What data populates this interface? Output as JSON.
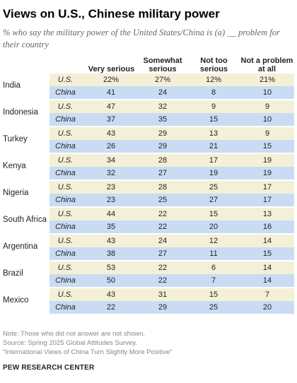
{
  "title": "Views on U.S., Chinese military power",
  "subtitle": "% who say the military power of the United States/China is (a) __ problem for their country",
  "columns": [
    "Very serious",
    "Somewhat serious",
    "Not too serious",
    "Not a problem at all"
  ],
  "notes": [
    "Note: Those who did not answer are not shown.",
    "Source: Spring 2025 Global Attitudes Survey.",
    "“International Views of China Turn Slightly More Positive”"
  ],
  "org": "PEW RESEARCH CENTER",
  "colors": {
    "us_row": "#f4f0d7",
    "china_row": "#c9dcf3"
  },
  "chart_data": {
    "type": "table",
    "columns": [
      "Very serious",
      "Somewhat serious",
      "Not too serious",
      "Not a problem at all"
    ],
    "rows": [
      {
        "country": "India",
        "series": [
          {
            "label": "U.S.",
            "values": [
              "22%",
              "27%",
              "12%",
              "21%"
            ]
          },
          {
            "label": "China",
            "values": [
              "41",
              "24",
              "8",
              "10"
            ]
          }
        ]
      },
      {
        "country": "Indonesia",
        "series": [
          {
            "label": "U.S.",
            "values": [
              "47",
              "32",
              "9",
              "9"
            ]
          },
          {
            "label": "China",
            "values": [
              "37",
              "35",
              "15",
              "10"
            ]
          }
        ]
      },
      {
        "country": "Turkey",
        "series": [
          {
            "label": "U.S.",
            "values": [
              "43",
              "29",
              "13",
              "9"
            ]
          },
          {
            "label": "China",
            "values": [
              "26",
              "29",
              "21",
              "15"
            ]
          }
        ]
      },
      {
        "country": "Kenya",
        "series": [
          {
            "label": "U.S.",
            "values": [
              "34",
              "28",
              "17",
              "19"
            ]
          },
          {
            "label": "China",
            "values": [
              "32",
              "27",
              "19",
              "19"
            ]
          }
        ]
      },
      {
        "country": "Nigeria",
        "series": [
          {
            "label": "U.S.",
            "values": [
              "23",
              "28",
              "25",
              "17"
            ]
          },
          {
            "label": "China",
            "values": [
              "23",
              "25",
              "27",
              "17"
            ]
          }
        ]
      },
      {
        "country": "South Africa",
        "series": [
          {
            "label": "U.S.",
            "values": [
              "44",
              "22",
              "15",
              "13"
            ]
          },
          {
            "label": "China",
            "values": [
              "35",
              "22",
              "20",
              "16"
            ]
          }
        ]
      },
      {
        "country": "Argentina",
        "series": [
          {
            "label": "U.S.",
            "values": [
              "43",
              "24",
              "12",
              "14"
            ]
          },
          {
            "label": "China",
            "values": [
              "38",
              "27",
              "11",
              "15"
            ]
          }
        ]
      },
      {
        "country": "Brazil",
        "series": [
          {
            "label": "U.S.",
            "values": [
              "53",
              "22",
              "6",
              "14"
            ]
          },
          {
            "label": "China",
            "values": [
              "50",
              "22",
              "7",
              "14"
            ]
          }
        ]
      },
      {
        "country": "Mexico",
        "series": [
          {
            "label": "U.S.",
            "values": [
              "43",
              "31",
              "15",
              "7"
            ]
          },
          {
            "label": "China",
            "values": [
              "22",
              "29",
              "25",
              "20"
            ]
          }
        ]
      }
    ]
  }
}
